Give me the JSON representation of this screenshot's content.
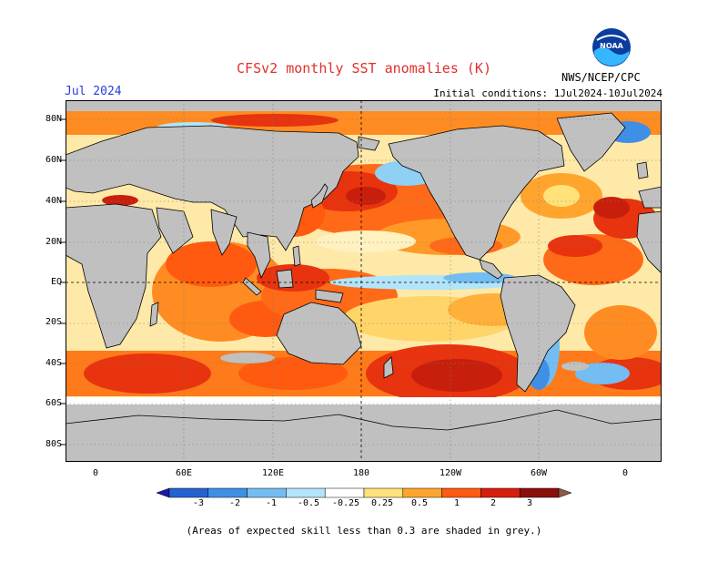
{
  "title": "CFSv2 monthly SST anomalies (K)",
  "month": "Jul 2024",
  "initial_conditions": "Initial conditions: 1Jul2024-10Jul2024",
  "agency": "NWS/NCEP/CPC",
  "logo_text": "NOAA",
  "footnote": "(Areas of expected skill less than 0.3 are shaded in grey.)",
  "lat_labels": [
    "80N",
    "60N",
    "40N",
    "20N",
    "EQ",
    "20S",
    "40S",
    "60S",
    "80S"
  ],
  "lon_labels": [
    "0",
    "60E",
    "120E",
    "180",
    "120W",
    "60W",
    "0"
  ],
  "colorbar": {
    "labels": [
      "-3",
      "-2",
      "-1",
      "-0.5",
      "-0.25",
      "0.25",
      "0.5",
      "1",
      "2",
      "3"
    ],
    "colors": [
      "#1c1aa8",
      "#2462d2",
      "#3f8fe6",
      "#74bdf2",
      "#b2e4fa",
      "#ffffff",
      "#ffe27a",
      "#ffa52e",
      "#ff5a0f",
      "#d51f0c",
      "#8c0e0a",
      "#8a5a4a"
    ]
  },
  "colors": {
    "land": "#c0c0c0",
    "skill_mask": "#c0c0c0",
    "title": "#e0302a",
    "month": "#2a3cd8"
  }
}
